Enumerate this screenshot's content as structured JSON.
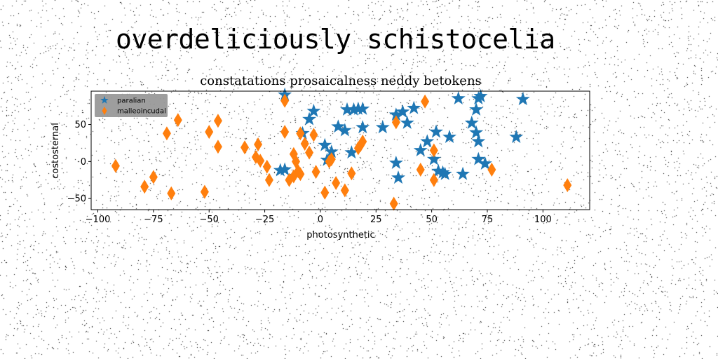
{
  "figure": {
    "suptitle": "overdeliciously schistocelia"
  },
  "colors": {
    "series_0": "#1f77b4",
    "series_1": "#ff7f0e",
    "legend_bg": "#999999"
  },
  "chart_data": {
    "type": "scatter",
    "title": "constatations prosaicalness neddy betokens",
    "xlabel": "photosynthetic",
    "ylabel": "costosternal",
    "xlim": [
      -103,
      121
    ],
    "ylim": [
      -65,
      95
    ],
    "xticks": [
      -100,
      -75,
      -50,
      -25,
      0,
      25,
      50,
      75,
      100
    ],
    "xtick_labels": [
      "−100",
      "−75",
      "−50",
      "−25",
      "0",
      "25",
      "50",
      "75",
      "100"
    ],
    "yticks": [
      -50,
      0,
      50
    ],
    "ytick_labels": [
      "−50",
      "0",
      "50"
    ],
    "grid": false,
    "legend_position": "top-left",
    "series": [
      {
        "name": "paralian",
        "marker": "star",
        "color": "#1f77b4",
        "points": [
          [
            -16,
            90
          ],
          [
            -5,
            57
          ],
          [
            -3,
            68
          ],
          [
            2,
            22
          ],
          [
            3,
            2
          ],
          [
            5,
            13
          ],
          [
            8,
            47
          ],
          [
            11,
            42
          ],
          [
            12,
            70
          ],
          [
            14,
            12
          ],
          [
            15,
            70
          ],
          [
            17,
            71
          ],
          [
            19,
            71
          ],
          [
            19,
            46
          ],
          [
            28,
            46
          ],
          [
            34,
            63
          ],
          [
            34,
            -2
          ],
          [
            35,
            -22
          ],
          [
            37,
            67
          ],
          [
            39,
            52
          ],
          [
            42,
            72
          ],
          [
            45,
            15
          ],
          [
            48,
            27
          ],
          [
            51,
            3
          ],
          [
            52,
            40
          ],
          [
            53,
            -13
          ],
          [
            55,
            -15
          ],
          [
            56,
            -17
          ],
          [
            58,
            33
          ],
          [
            62,
            85
          ],
          [
            64,
            -17
          ],
          [
            68,
            52
          ],
          [
            70,
            70
          ],
          [
            70,
            39
          ],
          [
            71,
            85
          ],
          [
            72,
            88
          ],
          [
            71,
            27
          ],
          [
            71,
            3
          ],
          [
            74,
            -3
          ],
          [
            88,
            33
          ],
          [
            91,
            84
          ],
          [
            -18,
            -12
          ],
          [
            -16,
            -11
          ],
          [
            -8,
            38
          ]
        ]
      },
      {
        "name": "malleoincudal",
        "marker": "diamond",
        "color": "#ff7f0e",
        "points": [
          [
            -92,
            -6
          ],
          [
            -79,
            -34
          ],
          [
            -75,
            -21
          ],
          [
            -69,
            38
          ],
          [
            -67,
            -43
          ],
          [
            -64,
            56
          ],
          [
            -52,
            -41
          ],
          [
            -50,
            40
          ],
          [
            -46,
            55
          ],
          [
            -46,
            20
          ],
          [
            -34,
            19
          ],
          [
            -29,
            6
          ],
          [
            -28,
            23
          ],
          [
            -27,
            1
          ],
          [
            -24,
            -7
          ],
          [
            -23,
            -25
          ],
          [
            -16,
            40
          ],
          [
            -16,
            82
          ],
          [
            -14,
            -25
          ],
          [
            -12,
            10
          ],
          [
            -12,
            -20
          ],
          [
            -11,
            0
          ],
          [
            -10,
            -13
          ],
          [
            -9,
            -17
          ],
          [
            -9,
            38
          ],
          [
            -7,
            24
          ],
          [
            -5,
            12
          ],
          [
            -3,
            36
          ],
          [
            -2,
            -14
          ],
          [
            2,
            -42
          ],
          [
            4,
            0
          ],
          [
            5,
            3
          ],
          [
            7,
            -29
          ],
          [
            11,
            -39
          ],
          [
            14,
            -16
          ],
          [
            17,
            18
          ],
          [
            18,
            22
          ],
          [
            19,
            27
          ],
          [
            33,
            -57
          ],
          [
            34,
            53
          ],
          [
            45,
            -11
          ],
          [
            47,
            81
          ],
          [
            51,
            15
          ],
          [
            51,
            -25
          ],
          [
            77,
            -11
          ],
          [
            111,
            -32
          ]
        ]
      }
    ]
  }
}
